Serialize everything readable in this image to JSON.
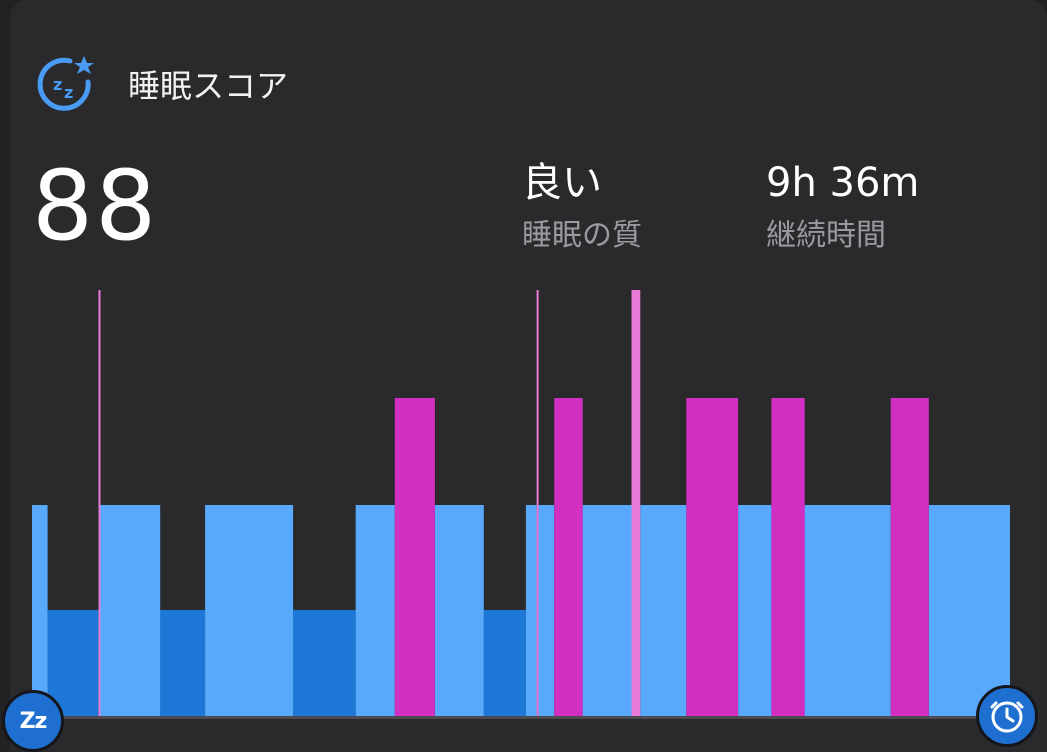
{
  "header": {
    "title": "睡眠スコア",
    "icon": "sleep-zz-star-icon"
  },
  "score": "88",
  "quality": {
    "value": "良い",
    "label": "睡眠の質"
  },
  "duration": {
    "value": "9h 36m",
    "label": "継続時間"
  },
  "colors": {
    "accent": "#4a9bf5",
    "light": "#58a8fc",
    "deep": "#1c77d6",
    "rem": "#d02fc2",
    "awake": "#e87ad8"
  },
  "chart_data": {
    "type": "bar",
    "description_levels": [
      "deep",
      "light",
      "rem",
      "awake"
    ],
    "segments": [
      {
        "stage": "light",
        "start": 0.0,
        "end": 1.6
      },
      {
        "stage": "deep",
        "start": 1.6,
        "end": 6.8
      },
      {
        "stage": "awake",
        "start": 6.8,
        "end": 7.0
      },
      {
        "stage": "light",
        "start": 7.0,
        "end": 13.1
      },
      {
        "stage": "deep",
        "start": 13.1,
        "end": 17.7
      },
      {
        "stage": "light",
        "start": 17.7,
        "end": 26.7
      },
      {
        "stage": "deep",
        "start": 26.7,
        "end": 33.1
      },
      {
        "stage": "light",
        "start": 33.1,
        "end": 37.1
      },
      {
        "stage": "rem",
        "start": 37.1,
        "end": 41.2
      },
      {
        "stage": "light",
        "start": 41.2,
        "end": 46.2
      },
      {
        "stage": "deep",
        "start": 46.2,
        "end": 50.5
      },
      {
        "stage": "light",
        "start": 50.5,
        "end": 51.6
      },
      {
        "stage": "awake",
        "start": 51.6,
        "end": 51.8
      },
      {
        "stage": "light",
        "start": 51.8,
        "end": 53.4
      },
      {
        "stage": "rem",
        "start": 53.4,
        "end": 56.3
      },
      {
        "stage": "light",
        "start": 56.3,
        "end": 61.3
      },
      {
        "stage": "awake",
        "start": 61.3,
        "end": 62.2
      },
      {
        "stage": "light",
        "start": 62.2,
        "end": 66.9
      },
      {
        "stage": "rem",
        "start": 66.9,
        "end": 72.2
      },
      {
        "stage": "light",
        "start": 72.2,
        "end": 75.6
      },
      {
        "stage": "rem",
        "start": 75.6,
        "end": 79.0
      },
      {
        "stage": "light",
        "start": 79.0,
        "end": 87.8
      },
      {
        "stage": "rem",
        "start": 87.8,
        "end": 91.7
      },
      {
        "stage": "light",
        "start": 91.7,
        "end": 100.0
      }
    ]
  },
  "buttons": {
    "left": {
      "icon": "zz-icon",
      "text": "Zz"
    },
    "right": {
      "icon": "clock-icon"
    }
  }
}
